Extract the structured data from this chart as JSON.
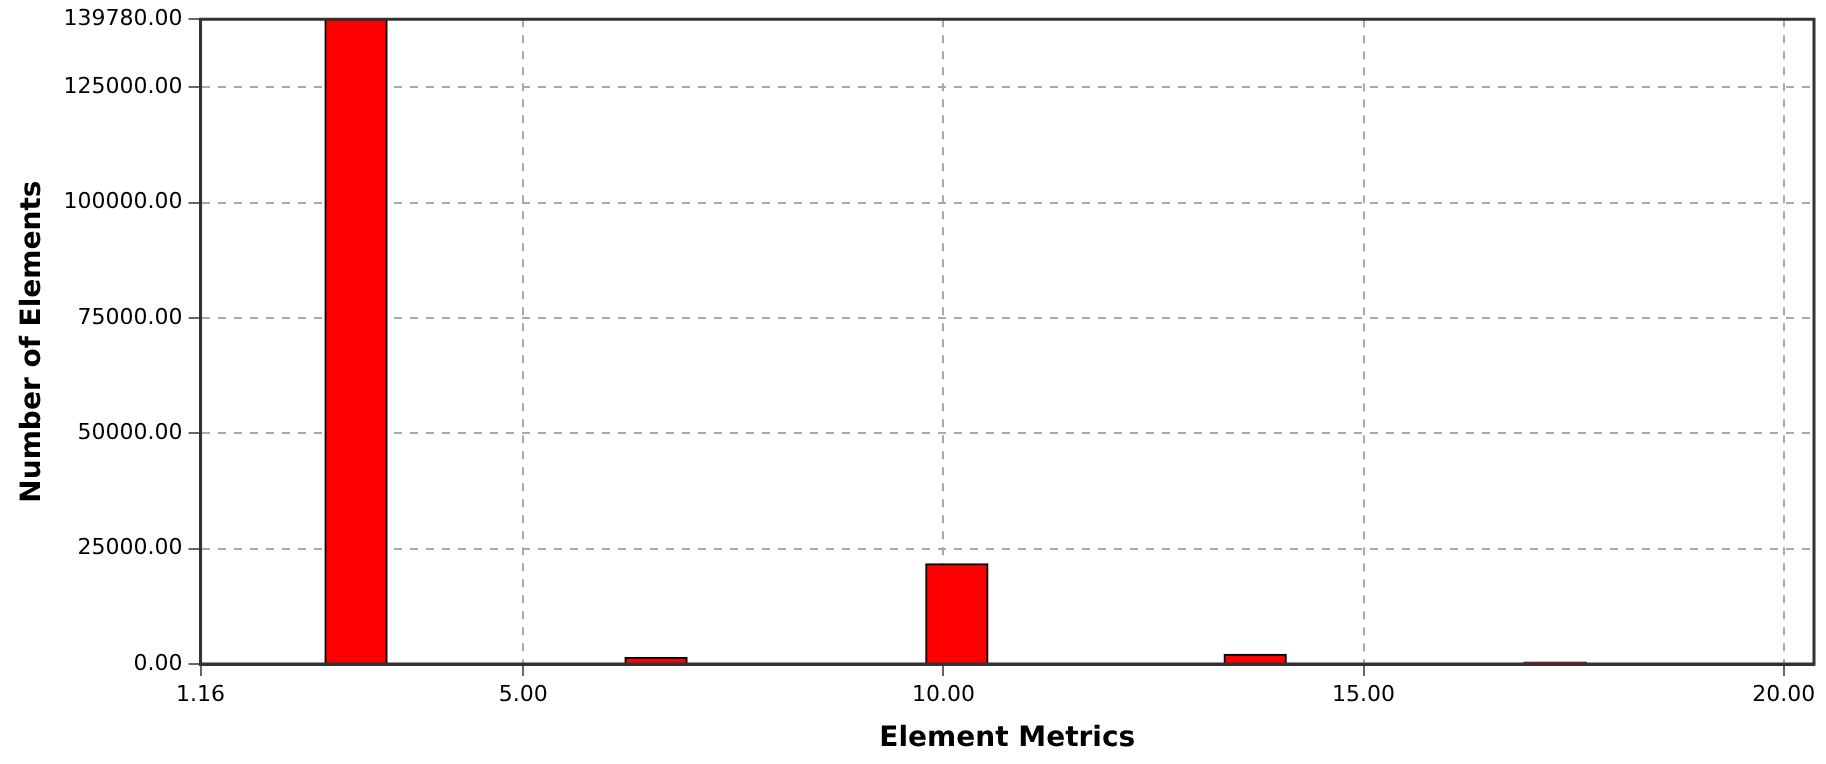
{
  "chart_data": {
    "type": "bar",
    "xlabel": "Element Metrics",
    "ylabel": "Number of Elements",
    "x": [
      3.01,
      6.58,
      10.16,
      13.71,
      17.28
    ],
    "series": [
      {
        "color": "#ff0000",
        "values": [
          139780,
          1400,
          21700,
          2100,
          400
        ]
      }
    ],
    "xlim": [
      1.16,
      20.36
    ],
    "xticks": [
      {
        "value": 1.16,
        "label": "1.16"
      },
      {
        "value": 5,
        "label": "5.00"
      },
      {
        "value": 10,
        "label": "10.00"
      },
      {
        "value": 15,
        "label": "15.00"
      },
      {
        "value": 20,
        "label": "20.00"
      }
    ],
    "ylim": [
      0,
      139780
    ],
    "yticks": [
      {
        "value": 0,
        "label": "0.00"
      },
      {
        "value": 25000,
        "label": "25000.00"
      },
      {
        "value": 50000,
        "label": "50000.00"
      },
      {
        "value": 75000,
        "label": "75000.00"
      },
      {
        "value": 100000,
        "label": "100000.00"
      },
      {
        "value": 125000,
        "label": "125000.00"
      },
      {
        "value": 139780,
        "label": "139780.00"
      }
    ],
    "grid": true,
    "line_style": "dashed",
    "legend": false
  }
}
